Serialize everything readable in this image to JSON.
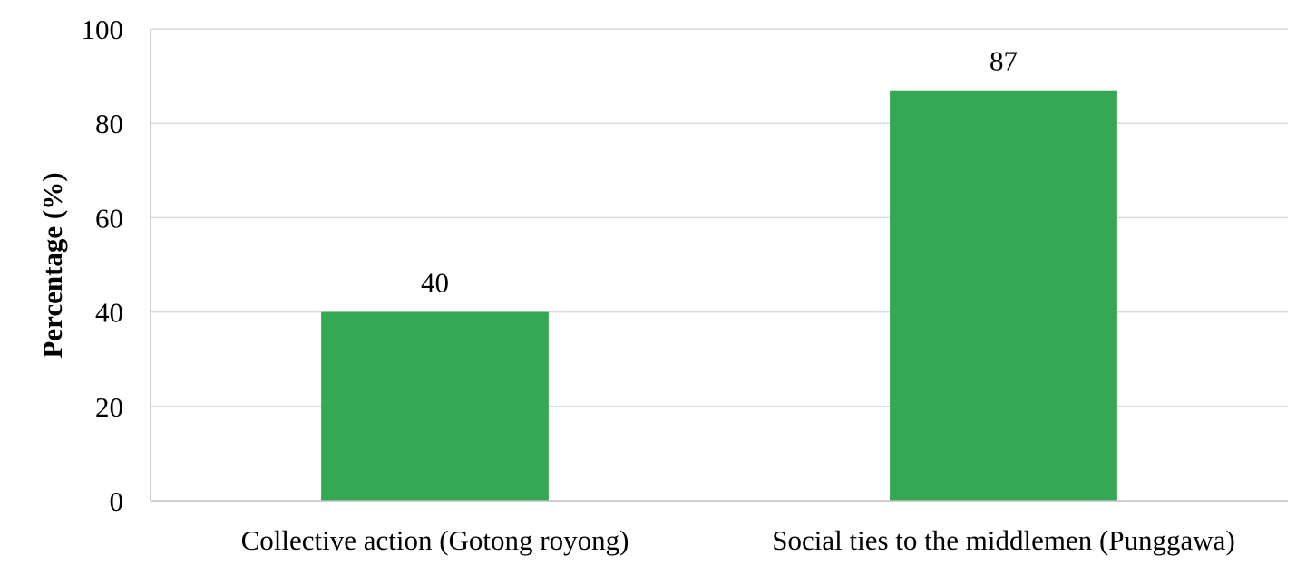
{
  "chart_data": {
    "type": "bar",
    "title": "",
    "xlabel": "",
    "ylabel": "Percentage (%)",
    "categories": [
      "Collective action (Gotong royong)",
      "Social ties to the middlemen (Punggawa)"
    ],
    "values": [
      40,
      87
    ],
    "data_labels": [
      "40",
      "87"
    ],
    "ylim": [
      0,
      100
    ],
    "yticks": [
      "0",
      "20",
      "40",
      "60",
      "80",
      "100"
    ],
    "grid": true,
    "legend": "none",
    "bar_color": "#34a853"
  }
}
